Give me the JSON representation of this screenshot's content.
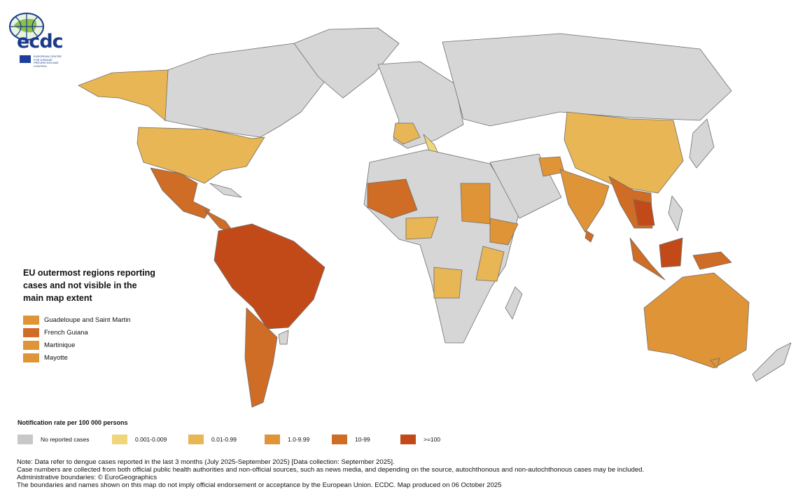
{
  "logo": {
    "text": "ecdc",
    "subtitle": "EUROPEAN CENTRE FOR DISEASE PREVENTION AND CONTROL"
  },
  "inset": {
    "title": "EU outermost regions reporting cases and not visible in the main map extent",
    "items": [
      {
        "label": "Guadeloupe and Saint Martin",
        "color": "#de9437"
      },
      {
        "label": "French Guiana",
        "color": "#cf6c25"
      },
      {
        "label": "Martinique",
        "color": "#de9437"
      },
      {
        "label": "Mayotte",
        "color": "#de9437"
      }
    ]
  },
  "legend": {
    "title": "Notification rate per 100 000 persons",
    "items": [
      {
        "label": "No reported cases",
        "color": "#c8c8c8"
      },
      {
        "label": "0.001-0.009",
        "color": "#f0d57a"
      },
      {
        "label": "0.01-0.99",
        "color": "#e8b654"
      },
      {
        "label": "1.0-9.99",
        "color": "#de9437"
      },
      {
        "label": "10-99",
        "color": "#cf6c25"
      },
      {
        "label": ">=100",
        "color": "#c24a18"
      }
    ]
  },
  "map_colors": {
    "land_no_cases": "#d6d6d6",
    "border": "#6e6e6e"
  },
  "notes": [
    "Note: Data refer to dengue cases reported in the last 3 months (July 2025-September 2025) [Data collection: September 2025].",
    "Case numbers are collected from both official public health authorities and non-official sources, such as news media, and depending on the source, autochthonous and non-autochthonous cases may be included.",
    "Administrative boundaries: © EuroGeographics",
    "The boundaries and names shown on this map do not imply official endorsement or acceptance by the European Union. ECDC. Map produced on 06 October 2025"
  ]
}
